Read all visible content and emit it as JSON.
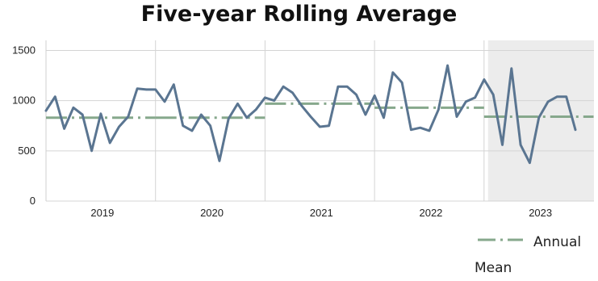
{
  "chart_data": {
    "type": "line",
    "title": "Five-year Rolling Average",
    "xlabel": "",
    "ylabel": "",
    "ylim": [
      0,
      1600
    ],
    "yticks": [
      0,
      500,
      1000,
      1500
    ],
    "year_labels": [
      "2019",
      "2020",
      "2021",
      "2022",
      "2023"
    ],
    "grid": true,
    "legend_position": "bottom-right",
    "shaded_period": "2023",
    "series": [
      {
        "name": "",
        "color": "#5a7591",
        "values": [
          900,
          1040,
          720,
          930,
          860,
          500,
          870,
          580,
          740,
          840,
          1120,
          1110,
          1110,
          990,
          1160,
          750,
          700,
          860,
          750,
          400,
          820,
          970,
          830,
          910,
          1030,
          1000,
          1140,
          1080,
          950,
          840,
          740,
          750,
          1140,
          1140,
          1060,
          860,
          1050,
          830,
          1280,
          1180,
          710,
          730,
          700,
          910,
          1350,
          840,
          990,
          1030,
          1210,
          1060,
          560,
          1320,
          560,
          380,
          830,
          990,
          1040,
          1040,
          710
        ]
      },
      {
        "name": "Annual Mean",
        "color": "#86a88c",
        "style": "dash-dot",
        "segments": [
          {
            "year": "2019",
            "value": 830
          },
          {
            "year": "2020",
            "value": 830
          },
          {
            "year": "2021",
            "value": 970
          },
          {
            "year": "2022",
            "value": 930
          },
          {
            "year": "2023",
            "value": 840
          }
        ]
      }
    ]
  }
}
